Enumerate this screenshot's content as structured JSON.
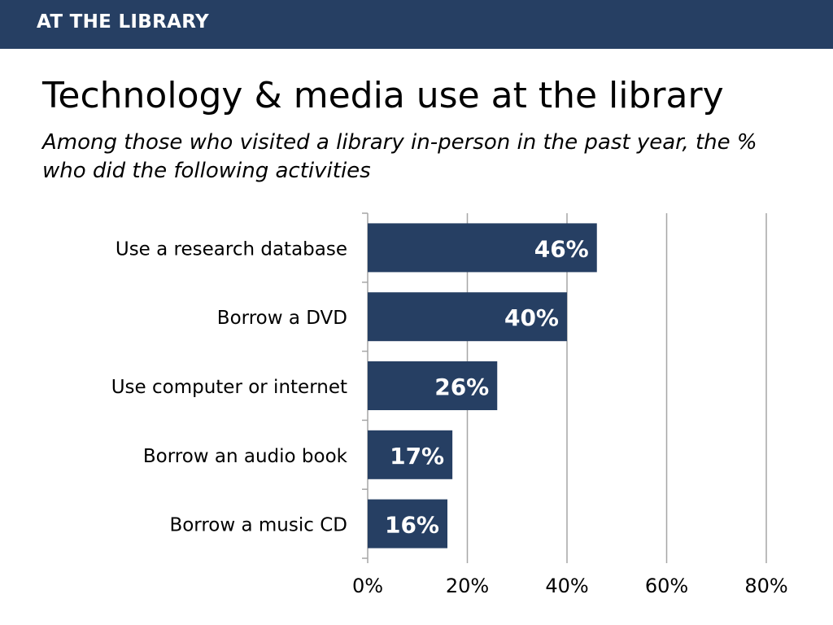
{
  "header": {
    "label": "AT THE LIBRARY"
  },
  "title": "Technology & media use at the library",
  "subtitle": "Among those who visited a library in-person in the past year, the % who did the following activities",
  "colors": {
    "header_bg": "#263f63",
    "bar": "#263f63",
    "bar_label": "#ffffff",
    "gridline": "#a6a6a6"
  },
  "chart_data": {
    "type": "bar",
    "orientation": "horizontal",
    "title": "",
    "xlabel": "",
    "ylabel": "",
    "categories": [
      "Use a research database",
      "Borrow a DVD",
      "Use computer or internet",
      "Borrow an audio book",
      "Borrow a music CD"
    ],
    "values": [
      46,
      40,
      26,
      17,
      16
    ],
    "data_labels": [
      "46%",
      "40%",
      "26%",
      "17%",
      "16%"
    ],
    "xlim": [
      0,
      80
    ],
    "x_ticks": [
      0,
      20,
      40,
      60,
      80
    ],
    "x_tick_labels": [
      "0%",
      "20%",
      "40%",
      "60%",
      "80%"
    ],
    "grid": true,
    "legend": "none"
  }
}
